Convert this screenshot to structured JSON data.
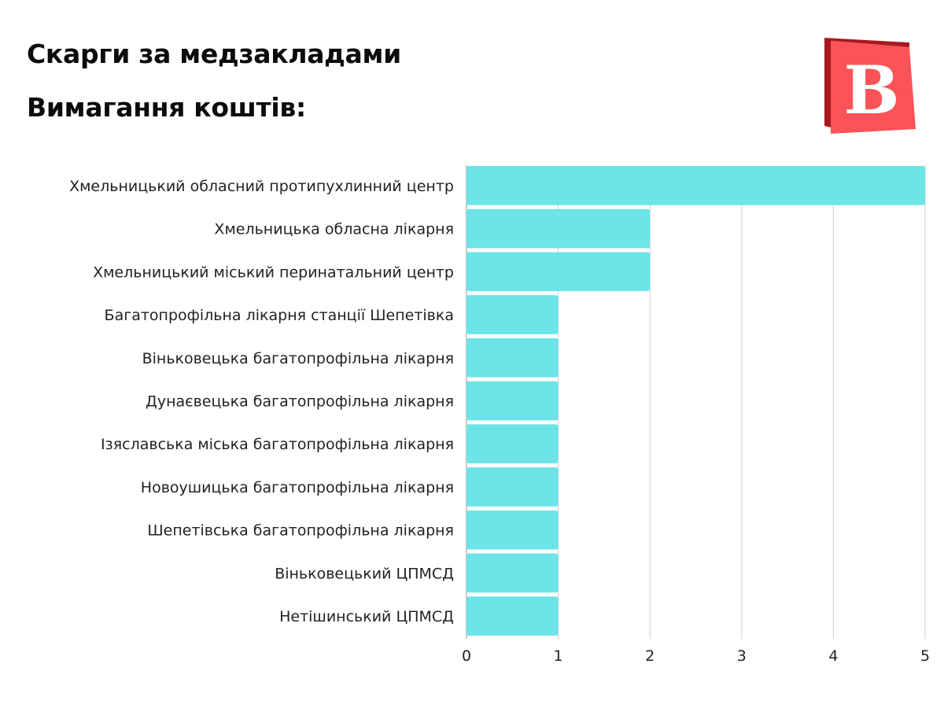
{
  "header": {
    "title": "Скарги за медзакладами",
    "subtitle": "Вимагання коштів:"
  },
  "logo": {
    "letter": "В",
    "colors": {
      "front": "#fb5357",
      "back": "#a8191f",
      "letter": "#ffffff"
    }
  },
  "colors": {
    "bar": "#6ce4e8",
    "grid": "#cccccc",
    "axis": "#999999"
  },
  "chart_data": {
    "type": "bar",
    "orientation": "horizontal",
    "categories": [
      "Хмельницький обласний протипухлинний центр",
      "Хмельницька обласна лікарня",
      "Хмельницький міський перинатальний центр",
      "Багатопрофільна лікарня станції Шепетівка",
      "Віньковецька багатопрофільна лікарня",
      "Дунаєвецька багатопрофільна лікарня",
      "Ізяславська міська багатопрофільна лікарня",
      "Новоушицька багатопрофільна лікарня",
      "Шепетівська багатопрофільна лікарня",
      "Віньковецький ЦПМСД",
      "Нетішинський ЦПМСД"
    ],
    "values": [
      5,
      2,
      2,
      1,
      1,
      1,
      1,
      1,
      1,
      1,
      1
    ],
    "xlim": [
      0,
      5
    ],
    "xticks": [
      "0",
      "1",
      "2",
      "3",
      "4",
      "5"
    ],
    "grid": true,
    "legend": "none"
  }
}
